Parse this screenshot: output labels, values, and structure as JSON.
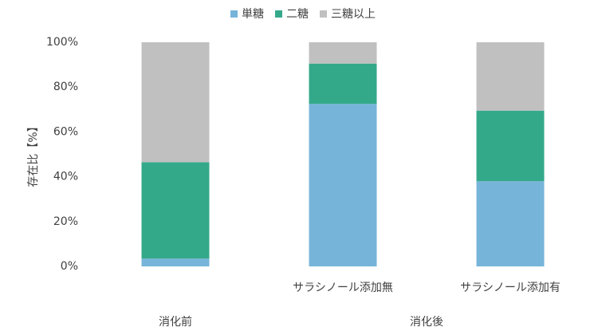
{
  "chart_data": {
    "type": "stacked_bar",
    "y_label": "存在比【%】",
    "categories": [
      null,
      "サラシノール添加無",
      "サラシノール添加有"
    ],
    "group_labels": [
      {
        "label": "消化前",
        "span": 1
      },
      {
        "label": "消化後",
        "span": 2
      }
    ],
    "series": [
      {
        "name": "単糖",
        "color": "#77b4d9",
        "values": [
          3.5,
          72.5,
          38
        ]
      },
      {
        "name": "二糖",
        "color": "#34a98a",
        "values": [
          43,
          18,
          31.5
        ]
      },
      {
        "name": "三糖以上",
        "color": "#c0c0c0",
        "values": [
          53.5,
          9.5,
          30.5
        ]
      }
    ],
    "ylim": [
      0,
      100
    ],
    "yticks": [
      {
        "value": 0,
        "label": "0%"
      },
      {
        "value": 20,
        "label": "20%"
      },
      {
        "value": 40,
        "label": "40%"
      },
      {
        "value": 60,
        "label": "60%"
      },
      {
        "value": 80,
        "label": "80%"
      },
      {
        "value": 100,
        "label": "100%"
      }
    ],
    "grid": false,
    "legend": "top"
  }
}
